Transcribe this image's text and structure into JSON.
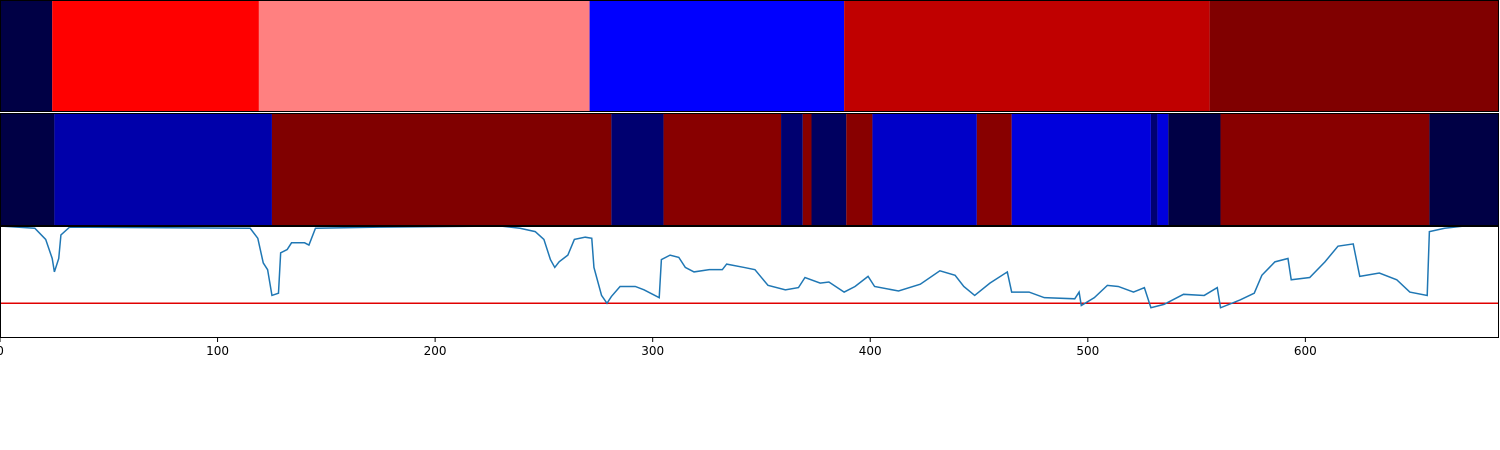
{
  "chart_data": [
    {
      "type": "segments",
      "xlim": [
        0,
        689
      ],
      "bins": [
        0,
        24,
        119,
        271,
        388,
        556,
        689
      ],
      "colors": [
        "#000045",
        "#ff0000",
        "#ff8080",
        "#0000ff",
        "#c00000",
        "#800000"
      ]
    },
    {
      "type": "segments",
      "xlim": [
        0,
        689
      ],
      "bins": [
        0,
        25,
        125,
        281,
        305,
        359,
        369,
        373,
        389,
        401,
        449,
        465,
        529,
        532,
        537,
        561,
        657,
        689
      ],
      "colors": [
        "#000045",
        "#0000aa",
        "#800000",
        "#000070",
        "#880000",
        "#000070",
        "#880000",
        "#000060",
        "#880000",
        "#0000c8",
        "#880000",
        "#0000dc",
        "#000070",
        "#0000dc",
        "#000045",
        "#880000",
        "#000045"
      ]
    },
    {
      "type": "line",
      "xlim": [
        0,
        689
      ],
      "ylim": [
        0,
        1
      ],
      "xticks": [
        0,
        100,
        200,
        300,
        400,
        500,
        600
      ],
      "color": "#1f77b4",
      "threshold": {
        "value": 0.31,
        "color": "#e00000"
      },
      "x": [
        0,
        16,
        21,
        24,
        25,
        27,
        28,
        32,
        115,
        118.5,
        121,
        123,
        125,
        128,
        129,
        132,
        134,
        140,
        142,
        145,
        174.5,
        230,
        239,
        246,
        250,
        253,
        255,
        257,
        261,
        264,
        269,
        272,
        273,
        276.5,
        279,
        281,
        285,
        292,
        296,
        303,
        304,
        308,
        312,
        315,
        319,
        326,
        332,
        334,
        342,
        347,
        353,
        361,
        367,
        370,
        377,
        381,
        388,
        393,
        399,
        402,
        413,
        423,
        432,
        439,
        443,
        448,
        455,
        463,
        465,
        473,
        480,
        494,
        496,
        497,
        503,
        509,
        514,
        521,
        526,
        529,
        535,
        544,
        553.5,
        559.5,
        561,
        570,
        576.5,
        580,
        586,
        592,
        593.5,
        602,
        609,
        615,
        622,
        625,
        634,
        642,
        648,
        656,
        657,
        664,
        673
      ],
      "values": [
        1.0,
        0.98,
        0.88,
        0.71,
        0.59,
        0.71,
        0.92,
        0.99,
        0.98,
        0.89,
        0.67,
        0.61,
        0.38,
        0.4,
        0.76,
        0.79,
        0.85,
        0.85,
        0.83,
        0.98,
        0.99,
        1.0,
        0.98,
        0.95,
        0.88,
        0.7,
        0.63,
        0.68,
        0.74,
        0.88,
        0.9,
        0.89,
        0.63,
        0.38,
        0.31,
        0.37,
        0.46,
        0.46,
        0.43,
        0.36,
        0.7,
        0.74,
        0.72,
        0.63,
        0.59,
        0.61,
        0.61,
        0.66,
        0.63,
        0.61,
        0.47,
        0.43,
        0.45,
        0.54,
        0.49,
        0.5,
        0.41,
        0.46,
        0.55,
        0.46,
        0.42,
        0.48,
        0.6,
        0.56,
        0.46,
        0.38,
        0.49,
        0.59,
        0.41,
        0.41,
        0.36,
        0.35,
        0.41,
        0.29,
        0.36,
        0.47,
        0.46,
        0.41,
        0.45,
        0.27,
        0.3,
        0.39,
        0.38,
        0.45,
        0.27,
        0.34,
        0.4,
        0.56,
        0.68,
        0.71,
        0.52,
        0.54,
        0.68,
        0.82,
        0.84,
        0.55,
        0.58,
        0.52,
        0.41,
        0.38,
        0.95,
        0.98,
        1.0
      ]
    }
  ]
}
